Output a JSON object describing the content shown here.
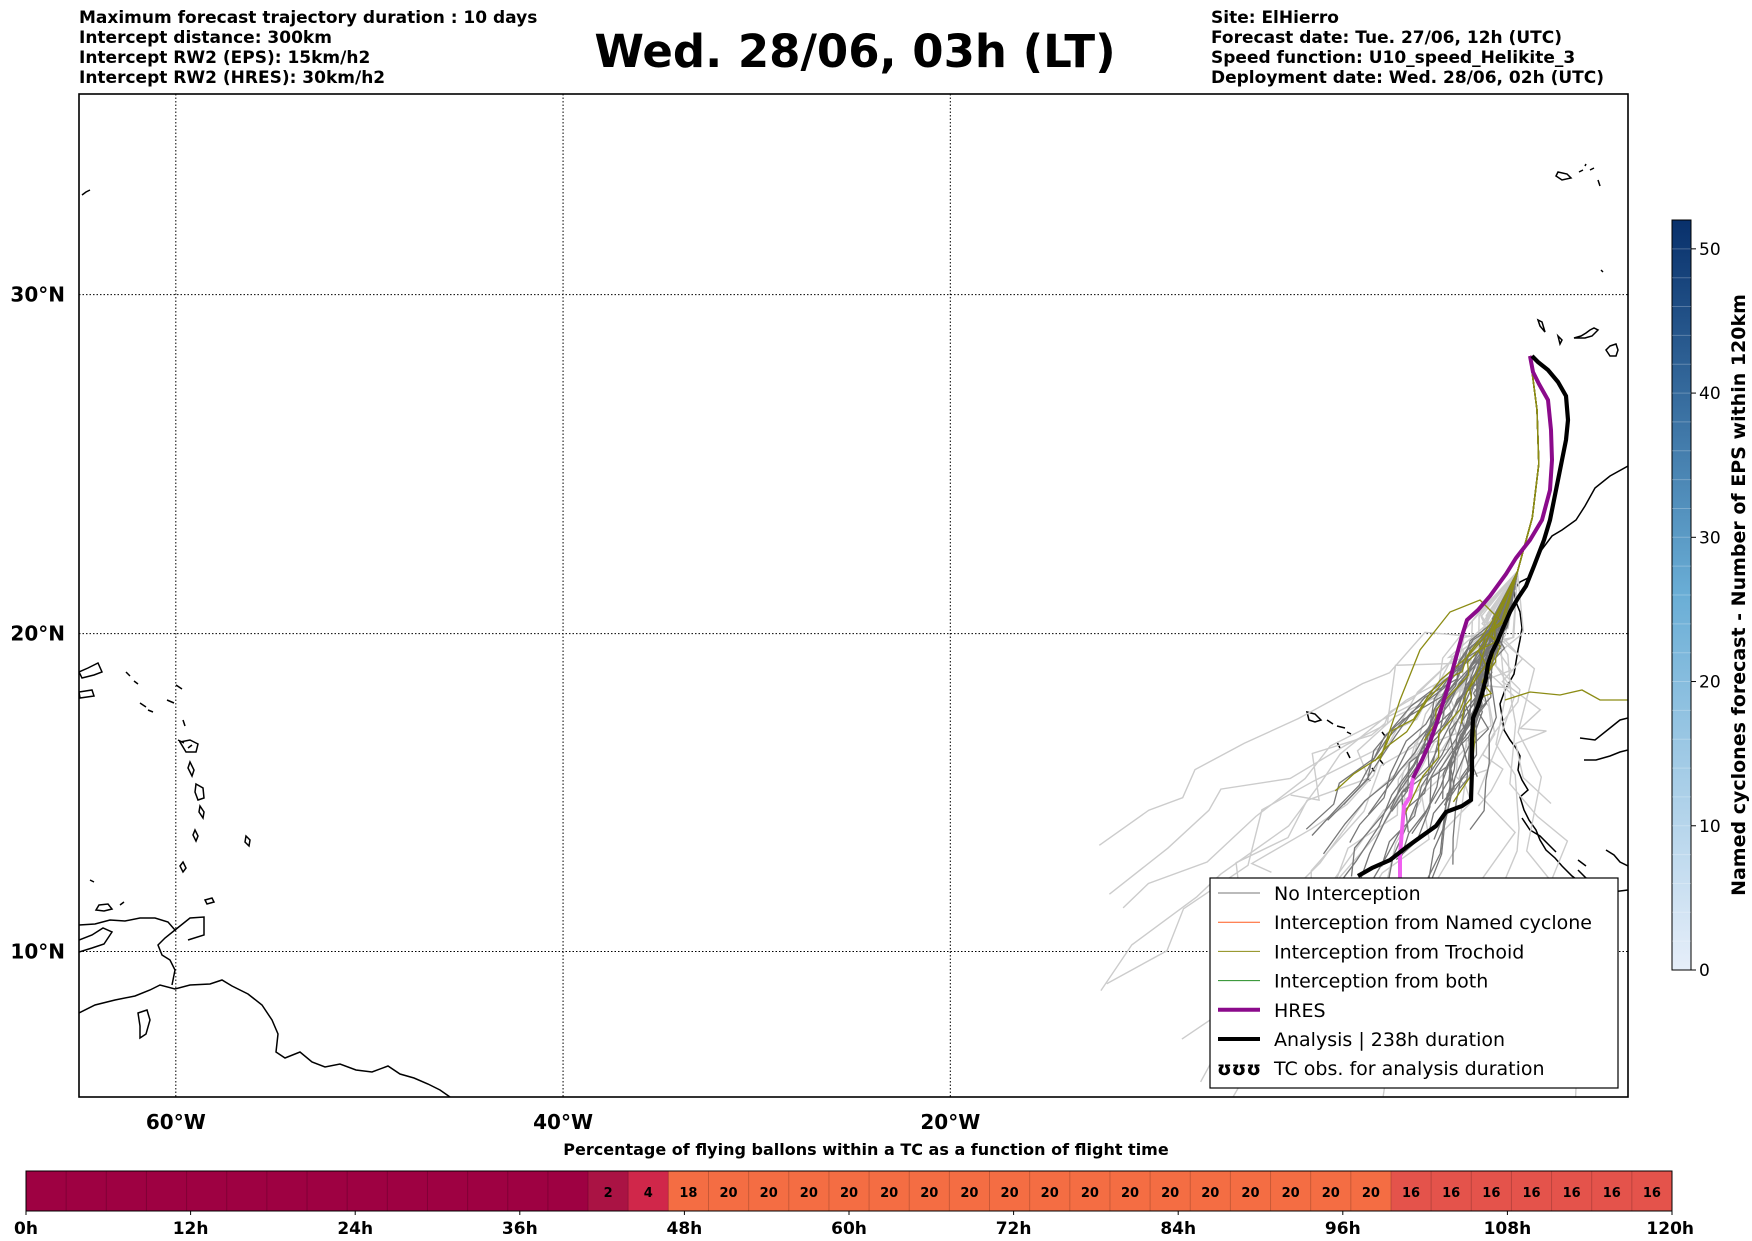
{
  "header": {
    "left_lines": [
      "Maximum forecast trajectory duration : 10 days",
      "Intercept distance: 300km",
      "Intercept RW2 (EPS):  15km/h2",
      "Intercept RW2 (HRES): 30km/h2"
    ],
    "title": "Wed. 28/06, 03h (LT)",
    "right_lines": [
      "Site: ElHierro",
      "Forecast date: Tue. 27/06, 12h (UTC)",
      "Speed function: U10_speed_Helikite_3",
      "Deployment date: Wed. 28/06, 02h (UTC)"
    ]
  },
  "map": {
    "lon_range": [
      -65,
      15
    ],
    "lat_range": [
      5.3,
      35.5
    ],
    "lat_ticks": [
      {
        "value": 30,
        "label": "30°N"
      },
      {
        "value": 20,
        "label": "20°N"
      },
      {
        "value": 10,
        "label": "10°N"
      }
    ],
    "lon_ticks": [
      {
        "value": -60,
        "label": "60°W"
      },
      {
        "value": -40,
        "label": "40°W"
      },
      {
        "value": -20,
        "label": "20°W"
      }
    ],
    "gridlines": true,
    "line_colors": {
      "no_interception": "#777777",
      "eps_light": "#cccccc",
      "named_cyclone": "#ff5a1e",
      "trochoid": "#8c8c14",
      "both": "#228b22",
      "hres": "#8b0a8b",
      "hres_pink": "#f060f0",
      "analysis": "#000000"
    }
  },
  "legend": {
    "position": "lower-right",
    "items": [
      {
        "label": "No Interception",
        "kind": "line",
        "color": "#777777",
        "width": 1
      },
      {
        "label": "Interception from Named cyclone",
        "kind": "line",
        "color": "#ff5a1e",
        "width": 1
      },
      {
        "label": "Interception from Trochoid",
        "kind": "line",
        "color": "#8c8c14",
        "width": 1
      },
      {
        "label": "Interception from both",
        "kind": "line",
        "color": "#228b22",
        "width": 1
      },
      {
        "label": "HRES",
        "kind": "line",
        "color": "#8b0a8b",
        "width": 4
      },
      {
        "label": "Analysis | 238h duration",
        "kind": "line",
        "color": "#000000",
        "width": 4
      },
      {
        "label": "TC obs. for analysis duration",
        "kind": "symbol",
        "symbol": "ʊʊʊ"
      }
    ]
  },
  "colorbar": {
    "label": "Named cyclones forecast - Number of EPS within 120km",
    "min": 0,
    "max": 52,
    "ticks": [
      0,
      10,
      20,
      30,
      40,
      50
    ],
    "color_low": "#e6eef9",
    "color_high": "#08306b"
  },
  "timebar": {
    "title": "Percentage of flying ballons within a TC as a function of flight time",
    "tick_labels": [
      "0h",
      "12h",
      "24h",
      "36h",
      "48h",
      "60h",
      "72h",
      "84h",
      "96h",
      "108h",
      "120h"
    ],
    "hours_per_cell": 3,
    "cells": [
      0,
      0,
      0,
      0,
      0,
      0,
      0,
      0,
      0,
      0,
      0,
      0,
      0,
      0,
      2,
      4,
      18,
      20,
      20,
      20,
      20,
      20,
      20,
      20,
      20,
      20,
      20,
      20,
      20,
      20,
      20,
      20,
      20,
      20,
      16,
      16,
      16,
      16,
      16,
      16,
      16
    ],
    "colors": {
      "zero": "#9e0142",
      "low": "#aa1344",
      "mid": "#d0274a",
      "orange": "#f46d43",
      "red": "#e4534b"
    }
  }
}
